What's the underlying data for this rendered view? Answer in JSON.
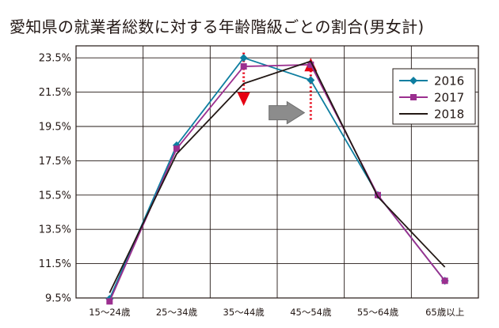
{
  "chart_data": {
    "type": "line",
    "title": "愛知県の就業者総数に対する年齢階級ごとの割合(男女計)",
    "xlabel": "",
    "ylabel": "",
    "categories": [
      "15〜24歳",
      "25〜34歳",
      "35〜44歳",
      "45〜54歳",
      "55〜64歳",
      "65歳以上"
    ],
    "y_ticks": [
      "9.5%",
      "11.5%",
      "13.5%",
      "15.5%",
      "17.5%",
      "19.5%",
      "21.5%",
      "23.5%"
    ],
    "ylim": [
      9.5,
      24.2
    ],
    "grid": true,
    "legend_position": "top-right",
    "series": [
      {
        "name": "2016",
        "color": "#0e7ea0",
        "marker": "diamond",
        "values": [
          9.45,
          18.4,
          23.5,
          22.2,
          15.5,
          10.5
        ]
      },
      {
        "name": "2017",
        "color": "#9b2f8f",
        "marker": "square",
        "values": [
          9.3,
          18.2,
          23.0,
          23.1,
          15.5,
          10.5
        ]
      },
      {
        "name": "2018",
        "color": "#231815",
        "marker": "none",
        "values": [
          9.8,
          17.9,
          22.0,
          23.3,
          15.4,
          11.3
        ]
      }
    ],
    "annotations": [
      {
        "kind": "shift-down",
        "category": "35〜44歳",
        "from": 23.8,
        "to": 20.7,
        "color": "#e60012"
      },
      {
        "kind": "shift-right",
        "from": "35〜44歳",
        "to": "45〜54歳",
        "at": 20.3,
        "color": "#8c8c8c"
      },
      {
        "kind": "shift-up",
        "category": "45〜54歳",
        "from": 19.9,
        "to": 23.5,
        "color": "#e60012"
      }
    ]
  }
}
